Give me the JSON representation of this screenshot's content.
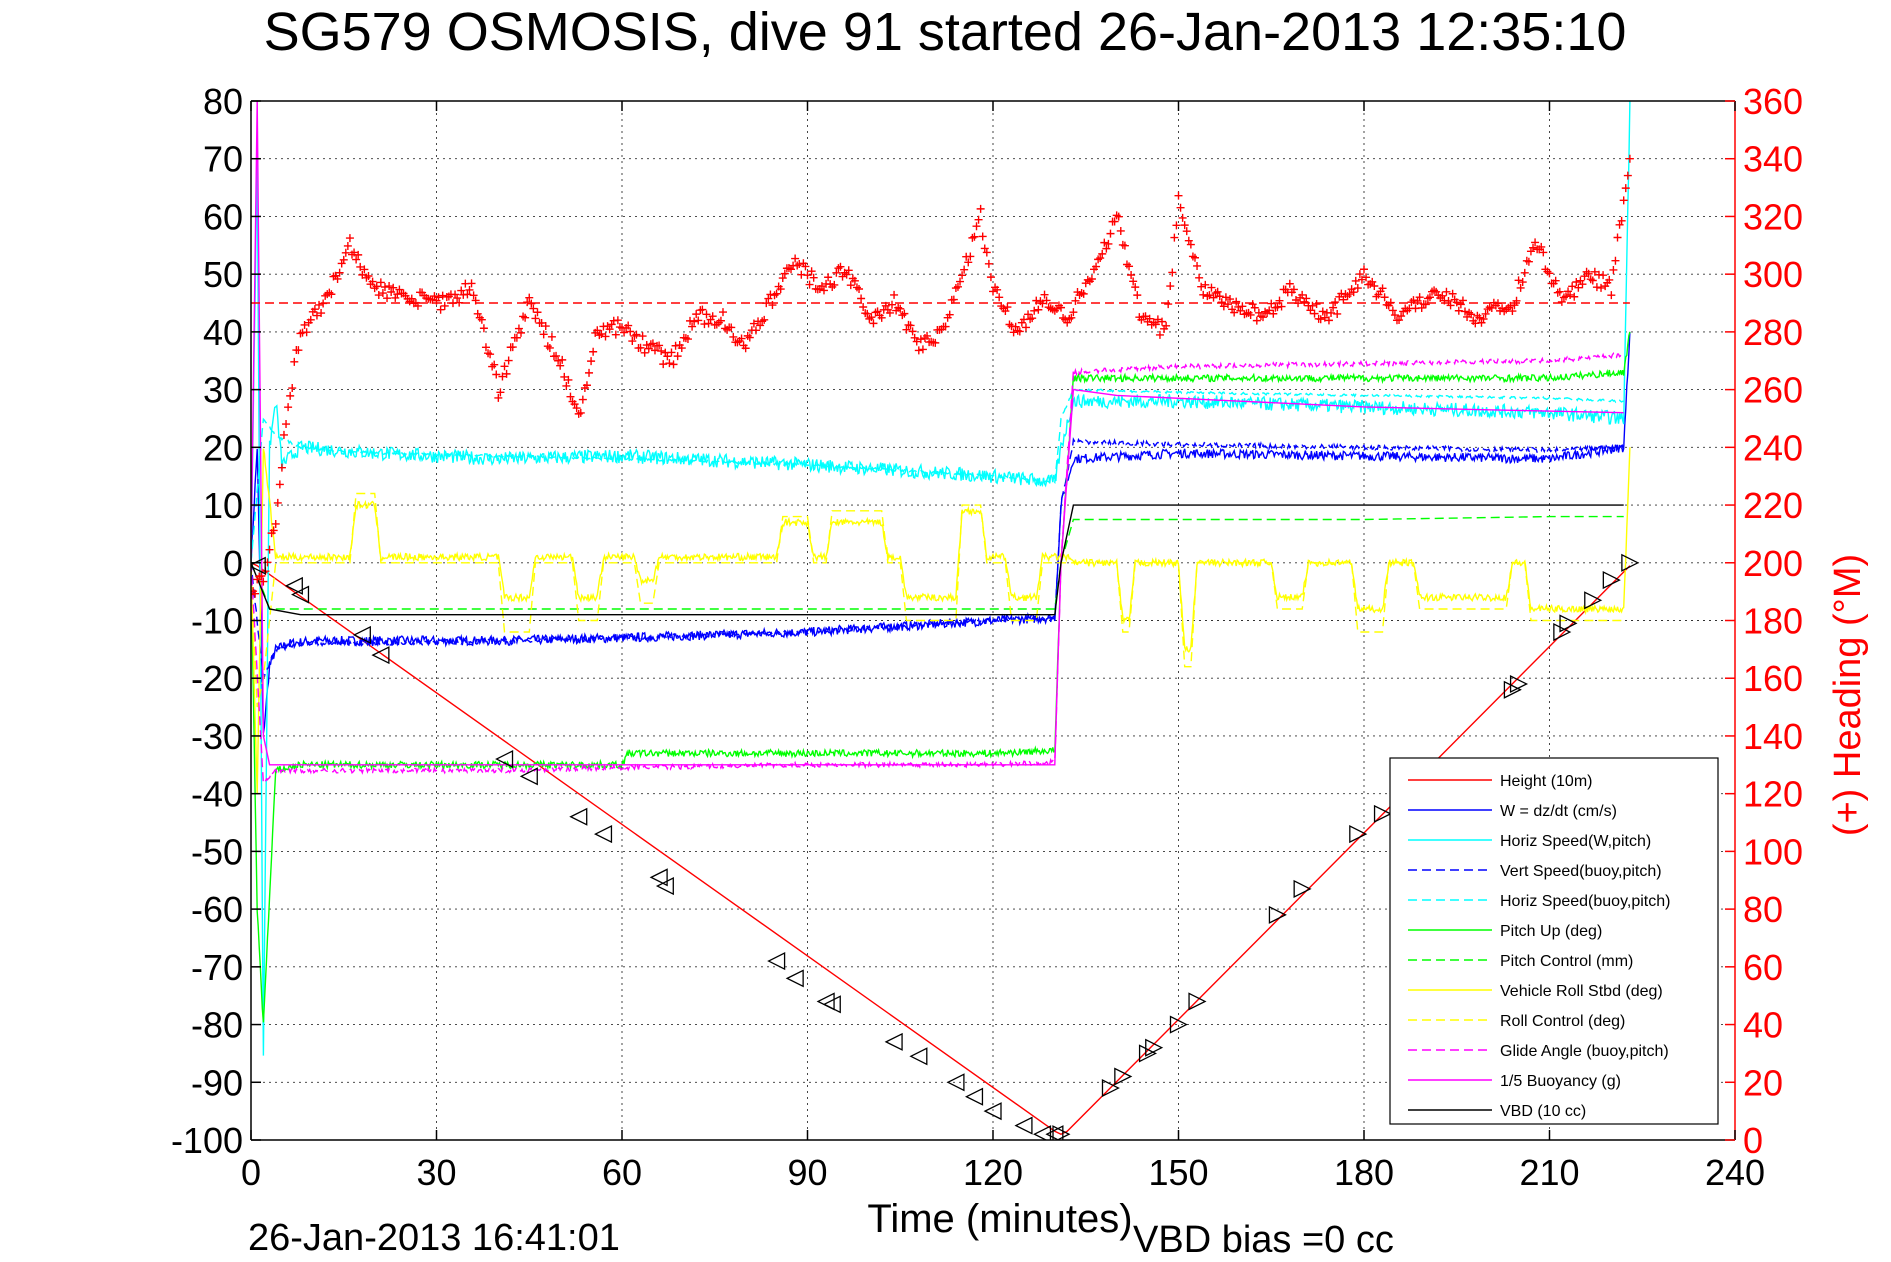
{
  "chart_data": {
    "type": "line",
    "title": "SG579 OSMOSIS, dive 91 started 26-Jan-2013 12:35:10",
    "xlabel": "Time (minutes)",
    "ylabel_right": "(+) Heading (°M)",
    "footer_left": "26-Jan-2013 16:41:01",
    "footer_right": "VBD bias =0 cc",
    "xlim": [
      0,
      240
    ],
    "ylim": [
      -100,
      80
    ],
    "ylim_right": [
      0,
      360
    ],
    "xticks": [
      0,
      30,
      60,
      90,
      120,
      150,
      180,
      210,
      240
    ],
    "yticks": [
      80,
      70,
      60,
      50,
      40,
      30,
      20,
      10,
      0,
      -10,
      -20,
      -30,
      -40,
      -50,
      -60,
      -70,
      -80,
      -90,
      -100
    ],
    "yticks_right": [
      360,
      340,
      320,
      300,
      280,
      260,
      240,
      220,
      200,
      180,
      160,
      140,
      120,
      100,
      80,
      60,
      40,
      20,
      0
    ],
    "xtick_labels": [
      "0",
      "30",
      "60",
      "90",
      "120",
      "150",
      "180",
      "210",
      "240"
    ],
    "ytick_labels": [
      "80",
      "70",
      "60",
      "50",
      "40",
      "30",
      "20",
      "10",
      "0",
      "-10",
      "-20",
      "-30",
      "-40",
      "-50",
      "-60",
      "-70",
      "-80",
      "-90",
      "-100"
    ],
    "ytick_labels_right": [
      "360",
      "340",
      "320",
      "300",
      "280",
      "260",
      "240",
      "220",
      "200",
      "180",
      "160",
      "140",
      "120",
      "100",
      "80",
      "60",
      "40",
      "20",
      "0"
    ],
    "grid": true,
    "legend_position": "bottom-right",
    "legend": [
      {
        "label": "Height (10m)",
        "color": "#ff0000",
        "dash": "solid"
      },
      {
        "label": "W = dz/dt (cm/s)",
        "color": "#0000ff",
        "dash": "solid"
      },
      {
        "label": "Horiz Speed(W,pitch)",
        "color": "#00ffff",
        "dash": "solid"
      },
      {
        "label": "Vert Speed(buoy,pitch)",
        "color": "#0000ff",
        "dash": "dashed"
      },
      {
        "label": "Horiz Speed(buoy,pitch)",
        "color": "#00ffff",
        "dash": "dashed"
      },
      {
        "label": "Pitch Up (deg)",
        "color": "#00ff00",
        "dash": "solid"
      },
      {
        "label": "Pitch Control (mm)",
        "color": "#00ff00",
        "dash": "dashed"
      },
      {
        "label": "Vehicle Roll Stbd (deg)",
        "color": "#ffff00",
        "dash": "solid"
      },
      {
        "label": "Roll Control (deg)",
        "color": "#ffff00",
        "dash": "dashed"
      },
      {
        "label": "Glide Angle (buoy,pitch)",
        "color": "#ff00ff",
        "dash": "dashed"
      },
      {
        "label": "1/5 Buoyancy (g)",
        "color": "#ff00ff",
        "dash": "solid"
      },
      {
        "label": "VBD (10 cc)",
        "color": "#000000",
        "dash": "solid"
      }
    ],
    "series": [
      {
        "name": "Height (10m)",
        "axis": "left",
        "color": "#ff0000",
        "dash": "solid",
        "noise": 0,
        "x": [
          0,
          1,
          130,
          131,
          132,
          223
        ],
        "y": [
          0,
          -0.5,
          -98.5,
          -99,
          -98.5,
          -0.5
        ]
      },
      {
        "name": "W = dz/dt (cm/s)",
        "axis": "left",
        "color": "#0000ff",
        "dash": "solid",
        "noise": 0.8,
        "x": [
          0,
          1,
          2,
          3,
          4,
          6,
          10,
          20,
          40,
          60,
          90,
          120,
          130,
          131,
          133,
          150,
          180,
          210,
          222,
          223
        ],
        "y": [
          0,
          20,
          -30,
          -18,
          -15,
          -14,
          -13.5,
          -13.5,
          -13.5,
          -13,
          -12,
          -10,
          -9.5,
          10,
          18,
          19,
          18.5,
          18,
          20,
          40
        ]
      },
      {
        "name": "Horiz Speed(W,pitch)",
        "axis": "left",
        "color": "#00ffff",
        "dash": "solid",
        "noise": 1.2,
        "x": [
          0,
          1,
          2,
          3,
          4,
          5,
          8,
          20,
          40,
          60,
          90,
          120,
          130,
          131,
          133,
          150,
          180,
          210,
          222,
          223
        ],
        "y": [
          0,
          70,
          -85,
          20,
          28,
          17,
          20,
          19,
          18,
          18.5,
          17,
          15,
          14,
          20,
          28,
          28,
          27,
          26,
          25,
          80
        ]
      },
      {
        "name": "Vert Speed(buoy,pitch)",
        "axis": "left",
        "color": "#0000ff",
        "dash": "dashed",
        "noise": 0.4,
        "x": [
          0,
          2,
          4,
          8,
          20,
          40,
          60,
          90,
          120,
          130,
          131,
          133,
          150,
          180,
          210,
          222
        ],
        "y": [
          0,
          -20,
          -15,
          -14,
          -14,
          -13.5,
          -13,
          -12,
          -10,
          -9.5,
          10,
          21,
          20.5,
          20,
          19.5,
          20
        ]
      },
      {
        "name": "Horiz Speed(buoy,pitch)",
        "axis": "left",
        "color": "#00ffff",
        "dash": "dashed",
        "noise": 0.2,
        "x": [
          0,
          2,
          4,
          8,
          20,
          40,
          60,
          90,
          120,
          130,
          131,
          133,
          150,
          180,
          210,
          222
        ],
        "y": [
          0,
          25,
          22,
          20,
          19,
          18.5,
          18,
          17,
          15,
          14,
          25,
          30,
          29.5,
          29,
          28.5,
          28
        ]
      },
      {
        "name": "Pitch Up (deg)",
        "axis": "left",
        "color": "#00ff00",
        "dash": "solid",
        "noise": 0.6,
        "x": [
          0,
          1,
          2,
          4,
          8,
          20,
          40,
          60,
          61,
          90,
          120,
          130,
          131,
          133,
          150,
          180,
          210,
          222,
          223
        ],
        "y": [
          0,
          -60,
          -80,
          -36,
          -35,
          -35,
          -35,
          -35,
          -33,
          -33,
          -33,
          -32.5,
          0,
          32,
          32,
          32,
          32,
          33,
          40
        ]
      },
      {
        "name": "Pitch Control (mm)",
        "axis": "left",
        "color": "#00ff00",
        "dash": "dashed",
        "noise": 0,
        "x": [
          0,
          2,
          3,
          8,
          60,
          120,
          130,
          131,
          133,
          150,
          180,
          210,
          222
        ],
        "y": [
          0,
          -5,
          -8,
          -8,
          -8,
          -8,
          -8,
          0,
          7.5,
          7.5,
          7.5,
          8,
          8
        ]
      },
      {
        "name": "Vehicle Roll Stbd (deg)",
        "axis": "left",
        "color": "#ffff00",
        "dash": "solid",
        "noise": 0.6,
        "x": [
          0,
          1,
          2,
          4,
          8,
          16,
          17,
          20,
          21,
          40,
          41,
          45,
          46,
          52,
          53,
          56,
          57,
          62,
          63,
          65,
          66,
          85,
          86,
          90,
          91,
          93,
          94,
          102,
          103,
          105,
          106,
          114,
          115,
          118,
          119,
          122,
          123,
          127,
          128,
          130,
          131,
          132,
          133,
          140,
          141,
          142,
          143,
          150,
          151,
          152,
          153,
          165,
          166,
          170,
          171,
          178,
          179,
          183,
          184,
          188,
          189,
          203,
          204,
          206,
          207,
          222,
          223
        ],
        "y": [
          0,
          -40,
          20,
          1,
          1,
          1,
          10,
          10,
          1,
          1,
          -6,
          -6,
          1,
          1,
          -6,
          -6,
          1,
          1,
          -3,
          -3,
          1,
          1,
          7,
          7,
          1,
          1,
          7,
          7,
          1,
          1,
          -6,
          -6,
          9,
          9,
          1,
          1,
          -6,
          -6,
          1,
          1,
          1,
          1,
          0,
          0,
          -10,
          -10,
          0,
          0,
          -15,
          -15,
          0,
          0,
          -6,
          -6,
          0,
          0,
          -8,
          -8,
          0,
          0,
          -6,
          -6,
          0,
          0,
          -8,
          -8,
          20
        ]
      },
      {
        "name": "Roll Control (deg)",
        "axis": "left",
        "color": "#ffff00",
        "dash": "dashed",
        "noise": 0,
        "x": [
          0,
          1,
          2,
          4,
          8,
          16,
          17,
          20,
          21,
          40,
          41,
          45,
          46,
          52,
          53,
          56,
          57,
          62,
          63,
          65,
          66,
          85,
          86,
          90,
          91,
          93,
          94,
          102,
          103,
          105,
          106,
          114,
          115,
          118,
          119,
          122,
          123,
          127,
          128,
          130,
          131,
          133,
          140,
          141,
          142,
          143,
          150,
          151,
          152,
          153,
          165,
          166,
          170,
          171,
          178,
          179,
          183,
          184,
          188,
          189,
          203,
          204,
          206,
          207,
          222
        ],
        "y": [
          0,
          -25,
          -20,
          0,
          0,
          0,
          12,
          12,
          0,
          0,
          -12,
          -12,
          0,
          0,
          -10,
          -10,
          0,
          0,
          -7,
          -7,
          0,
          0,
          8,
          8,
          0,
          0,
          9,
          9,
          0,
          0,
          -10,
          -10,
          10,
          10,
          0,
          0,
          -10,
          -10,
          0,
          0,
          0,
          0,
          0,
          -12,
          -12,
          0,
          0,
          -18,
          -18,
          0,
          0,
          -8,
          -8,
          0,
          0,
          -12,
          -12,
          0,
          0,
          -8,
          -8,
          0,
          0,
          -10,
          -10
        ]
      },
      {
        "name": "Glide Angle (buoy,pitch)",
        "axis": "left",
        "color": "#ff00ff",
        "dash": "dashed",
        "noise": 0.4,
        "x": [
          0,
          2,
          4,
          8,
          20,
          40,
          60,
          90,
          120,
          130,
          131,
          133,
          150,
          180,
          210,
          222
        ],
        "y": [
          0,
          -38,
          -36,
          -36,
          -36,
          -36,
          -35.5,
          -35,
          -35,
          -34.5,
          0,
          33,
          34,
          34.5,
          35,
          36
        ]
      },
      {
        "name": "1/5 Buoyancy (g)",
        "axis": "left",
        "color": "#ff00ff",
        "dash": "solid",
        "noise": 0,
        "x": [
          0,
          1,
          2,
          3,
          130,
          131,
          133,
          140,
          160,
          180,
          200,
          222
        ],
        "y": [
          0,
          80,
          -30,
          -35,
          -35,
          0,
          30,
          29,
          28,
          27,
          26.5,
          26
        ]
      },
      {
        "name": "VBD (10 cc)",
        "axis": "left",
        "color": "#000000",
        "dash": "solid",
        "noise": 0,
        "x": [
          0,
          3,
          8,
          60,
          120,
          130,
          131,
          133,
          134,
          150,
          180,
          210,
          222
        ],
        "y": [
          0,
          -8,
          -9,
          -9,
          -9,
          -9,
          0,
          10,
          10,
          10,
          10,
          10,
          10
        ]
      },
      {
        "name": "Heading",
        "axis": "right",
        "color": "#ff0000",
        "dash": "none",
        "marker": "plus",
        "noise": 3,
        "x": [
          0,
          2,
          4,
          6,
          8,
          12,
          16,
          20,
          25,
          30,
          36,
          40,
          45,
          50,
          53,
          56,
          60,
          64,
          68,
          72,
          76,
          80,
          84,
          88,
          92,
          96,
          100,
          104,
          108,
          112,
          118,
          120,
          124,
          128,
          132,
          136,
          140,
          144,
          148,
          150,
          154,
          158,
          164,
          168,
          174,
          180,
          186,
          192,
          198,
          204,
          208,
          212,
          216,
          220,
          223
        ],
        "y": [
          190,
          195,
          215,
          255,
          280,
          290,
          310,
          295,
          292,
          290,
          295,
          260,
          290,
          270,
          250,
          280,
          282,
          275,
          270,
          285,
          285,
          275,
          290,
          305,
          295,
          302,
          285,
          290,
          275,
          280,
          320,
          295,
          280,
          292,
          285,
          300,
          320,
          285,
          280,
          325,
          295,
          290,
          285,
          295,
          285,
          300,
          285,
          295,
          285,
          290,
          310,
          290,
          300,
          295,
          340
        ]
      },
      {
        "name": "Heading target",
        "axis": "right",
        "color": "#ff0000",
        "dash": "dashed",
        "noise": 0,
        "x": [
          0,
          223
        ],
        "y": [
          290,
          290
        ]
      }
    ],
    "markers": {
      "axis": "left",
      "color": "#000000",
      "down_x": [
        1,
        7,
        8,
        18,
        21,
        41,
        45,
        53,
        57,
        66,
        67,
        85,
        88,
        93,
        94,
        104,
        108,
        114,
        117,
        120,
        125,
        128,
        130
      ],
      "down_y": [
        -0.5,
        -4,
        -5.5,
        -12.5,
        -16,
        -34,
        -37,
        -44,
        -47,
        -54.5,
        -56,
        -69,
        -72,
        -76,
        -76.5,
        -83,
        -85.5,
        -90,
        -92.5,
        -95,
        -97.5,
        -99,
        -99
      ],
      "up_x": [
        131,
        139,
        141,
        145,
        146,
        150,
        153,
        166,
        170,
        179,
        183,
        204,
        205,
        212,
        213,
        217,
        220,
        223
      ],
      "up_y": [
        -99,
        -91,
        -89,
        -85,
        -84,
        -80,
        -76,
        -61,
        -56.5,
        -47,
        -43.5,
        -22,
        -21,
        -12,
        -10.5,
        -6.5,
        -3,
        0
      ]
    }
  }
}
